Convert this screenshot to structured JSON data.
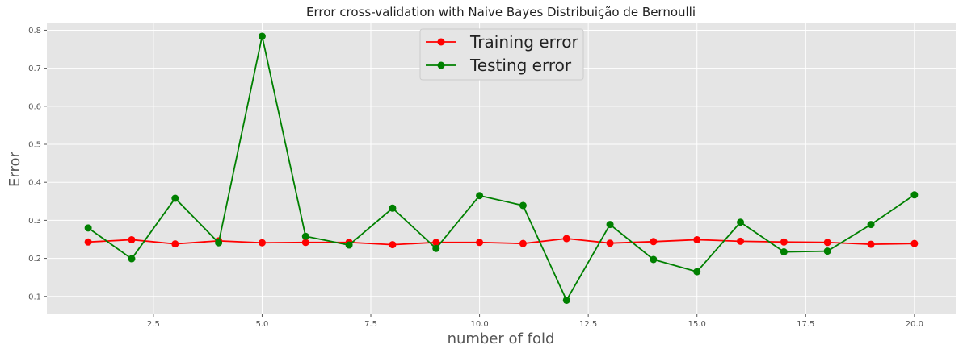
{
  "chart_data": {
    "type": "line",
    "title": "Error cross-validation with Naive Bayes Distribuição de Bernoulli",
    "xlabel": "number of fold",
    "ylabel": "Error",
    "xlim": [
      0.05,
      20.95
    ],
    "ylim": [
      0.055,
      0.82
    ],
    "xticks": [
      2.5,
      5.0,
      7.5,
      10.0,
      12.5,
      15.0,
      17.5,
      20.0
    ],
    "xtick_labels": [
      "2.5",
      "5.0",
      "7.5",
      "10.0",
      "12.5",
      "15.0",
      "17.5",
      "20.0"
    ],
    "yticks": [
      0.1,
      0.2,
      0.3,
      0.4,
      0.5,
      0.6,
      0.7,
      0.8
    ],
    "ytick_labels": [
      "0.1",
      "0.2",
      "0.3",
      "0.4",
      "0.5",
      "0.6",
      "0.7",
      "0.8"
    ],
    "grid": true,
    "legend_position": "top-center",
    "x": [
      1,
      2,
      3,
      4,
      5,
      6,
      7,
      8,
      9,
      10,
      11,
      12,
      13,
      14,
      15,
      16,
      17,
      18,
      19,
      20
    ],
    "series": [
      {
        "name": "Training error",
        "color": "#ff0000",
        "values": [
          0.243,
          0.249,
          0.238,
          0.246,
          0.241,
          0.242,
          0.242,
          0.236,
          0.242,
          0.242,
          0.239,
          0.252,
          0.24,
          0.244,
          0.249,
          0.245,
          0.243,
          0.242,
          0.237,
          0.239
        ]
      },
      {
        "name": "Testing error",
        "color": "#008000",
        "values": [
          0.28,
          0.199,
          0.358,
          0.241,
          0.784,
          0.258,
          0.235,
          0.332,
          0.226,
          0.365,
          0.339,
          0.09,
          0.289,
          0.197,
          0.165,
          0.295,
          0.217,
          0.219,
          0.289,
          0.367
        ]
      }
    ]
  }
}
